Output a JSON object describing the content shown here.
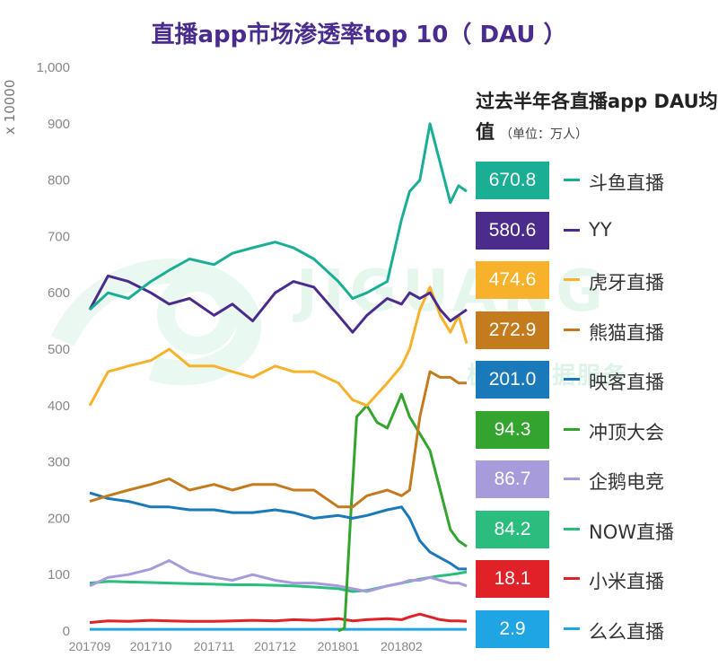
{
  "chart_data": {
    "type": "line",
    "title": "直播app市场渗透率top 10（ DAU ）",
    "y_unit_label": "x 10000",
    "ylim": [
      0,
      1000
    ],
    "y_ticks": [
      "0",
      "100",
      "200",
      "300",
      "400",
      "500",
      "600",
      "700",
      "800",
      "900",
      "1,000"
    ],
    "x_ticks": [
      "201709",
      "201710",
      "201711",
      "201712",
      "201801",
      "201802"
    ],
    "x_range": [
      "2017-09-01",
      "2018-03-05"
    ],
    "grid": false,
    "legend_title": "过去半年各直播app DAU均值",
    "legend_unit": "（单位：万人）",
    "series": [
      {
        "name": "斗鱼直播",
        "avg": "670.8",
        "color": "#1aae95",
        "x": [
          "2017-09-01",
          "2017-09-10",
          "2017-09-20",
          "2017-10-01",
          "2017-10-10",
          "2017-10-20",
          "2017-11-01",
          "2017-11-10",
          "2017-11-20",
          "2017-12-01",
          "2017-12-10",
          "2017-12-20",
          "2018-01-01",
          "2018-01-08",
          "2018-01-15",
          "2018-01-25",
          "2018-02-01",
          "2018-02-05",
          "2018-02-10",
          "2018-02-15",
          "2018-02-20",
          "2018-02-25",
          "2018-03-01",
          "2018-03-05"
        ],
        "values": [
          570,
          600,
          590,
          620,
          640,
          660,
          650,
          670,
          680,
          690,
          680,
          660,
          620,
          590,
          600,
          620,
          730,
          780,
          800,
          900,
          830,
          760,
          790,
          780
        ]
      },
      {
        "name": "YY",
        "avg": "580.6",
        "color": "#4b2c8c",
        "x": [
          "2017-09-01",
          "2017-09-10",
          "2017-09-20",
          "2017-10-01",
          "2017-10-10",
          "2017-10-20",
          "2017-11-01",
          "2017-11-10",
          "2017-11-20",
          "2017-12-01",
          "2017-12-10",
          "2017-12-20",
          "2018-01-01",
          "2018-01-08",
          "2018-01-15",
          "2018-01-25",
          "2018-02-01",
          "2018-02-05",
          "2018-02-10",
          "2018-02-15",
          "2018-02-20",
          "2018-02-25",
          "2018-03-01",
          "2018-03-05"
        ],
        "values": [
          570,
          630,
          620,
          600,
          580,
          590,
          560,
          580,
          550,
          600,
          620,
          610,
          560,
          530,
          560,
          590,
          580,
          600,
          590,
          600,
          570,
          550,
          560,
          570
        ]
      },
      {
        "name": "虎牙直播",
        "avg": "474.6",
        "color": "#f7b12b",
        "x": [
          "2017-09-01",
          "2017-09-10",
          "2017-09-20",
          "2017-10-01",
          "2017-10-10",
          "2017-10-20",
          "2017-11-01",
          "2017-11-10",
          "2017-11-20",
          "2017-12-01",
          "2017-12-10",
          "2017-12-20",
          "2018-01-01",
          "2018-01-08",
          "2018-01-15",
          "2018-01-25",
          "2018-02-01",
          "2018-02-05",
          "2018-02-10",
          "2018-02-15",
          "2018-02-20",
          "2018-02-25",
          "2018-03-01",
          "2018-03-05"
        ],
        "values": [
          400,
          460,
          470,
          480,
          500,
          470,
          470,
          460,
          450,
          470,
          460,
          460,
          440,
          410,
          400,
          440,
          470,
          500,
          570,
          610,
          560,
          530,
          560,
          510
        ]
      },
      {
        "name": "熊猫直播",
        "avg": "272.9",
        "color": "#c37b1e",
        "x": [
          "2017-09-01",
          "2017-09-10",
          "2017-09-20",
          "2017-10-01",
          "2017-10-10",
          "2017-10-20",
          "2017-11-01",
          "2017-11-10",
          "2017-11-20",
          "2017-12-01",
          "2017-12-10",
          "2017-12-20",
          "2018-01-01",
          "2018-01-08",
          "2018-01-15",
          "2018-01-25",
          "2018-02-01",
          "2018-02-05",
          "2018-02-10",
          "2018-02-15",
          "2018-02-20",
          "2018-02-25",
          "2018-03-01",
          "2018-03-05"
        ],
        "values": [
          230,
          240,
          250,
          260,
          270,
          250,
          260,
          250,
          260,
          260,
          250,
          250,
          220,
          220,
          240,
          250,
          240,
          250,
          380,
          460,
          450,
          450,
          440,
          440
        ]
      },
      {
        "name": "映客直播",
        "avg": "201.0",
        "color": "#1a79b9",
        "x": [
          "2017-09-01",
          "2017-09-10",
          "2017-09-20",
          "2017-10-01",
          "2017-10-10",
          "2017-10-20",
          "2017-11-01",
          "2017-11-10",
          "2017-11-20",
          "2017-12-01",
          "2017-12-10",
          "2017-12-20",
          "2018-01-01",
          "2018-01-08",
          "2018-01-15",
          "2018-01-25",
          "2018-02-01",
          "2018-02-05",
          "2018-02-10",
          "2018-02-15",
          "2018-02-20",
          "2018-02-25",
          "2018-03-01",
          "2018-03-05"
        ],
        "values": [
          245,
          235,
          230,
          220,
          220,
          215,
          215,
          210,
          210,
          215,
          210,
          200,
          205,
          200,
          205,
          215,
          220,
          200,
          160,
          140,
          130,
          120,
          110,
          110
        ]
      },
      {
        "name": "冲顶大会",
        "avg": "94.3",
        "color": "#33a42d",
        "x": [
          "2018-01-01",
          "2018-01-04",
          "2018-01-07",
          "2018-01-10",
          "2018-01-15",
          "2018-01-20",
          "2018-01-25",
          "2018-02-01",
          "2018-02-05",
          "2018-02-10",
          "2018-02-15",
          "2018-02-20",
          "2018-02-25",
          "2018-03-01",
          "2018-03-05"
        ],
        "values": [
          0,
          5,
          200,
          380,
          400,
          370,
          360,
          420,
          380,
          350,
          320,
          250,
          180,
          160,
          150
        ]
      },
      {
        "name": "企鹅电竞",
        "avg": "86.7",
        "color": "#a89bdc",
        "x": [
          "2017-09-01",
          "2017-09-10",
          "2017-09-20",
          "2017-10-01",
          "2017-10-10",
          "2017-10-20",
          "2017-11-01",
          "2017-11-10",
          "2017-11-20",
          "2017-12-01",
          "2017-12-10",
          "2017-12-20",
          "2018-01-01",
          "2018-01-08",
          "2018-01-15",
          "2018-01-25",
          "2018-02-01",
          "2018-02-05",
          "2018-02-10",
          "2018-02-15",
          "2018-02-20",
          "2018-02-25",
          "2018-03-01",
          "2018-03-05"
        ],
        "values": [
          80,
          95,
          100,
          110,
          125,
          105,
          95,
          90,
          100,
          90,
          85,
          85,
          80,
          75,
          70,
          80,
          85,
          90,
          90,
          95,
          90,
          85,
          85,
          80
        ]
      },
      {
        "name": "NOW直播",
        "avg": "84.2",
        "color": "#2bbd7e",
        "x": [
          "2017-09-01",
          "2017-09-10",
          "2017-09-20",
          "2017-10-01",
          "2017-10-10",
          "2017-10-20",
          "2017-11-01",
          "2017-11-10",
          "2017-11-20",
          "2017-12-01",
          "2017-12-10",
          "2017-12-20",
          "2018-01-01",
          "2018-01-08",
          "2018-01-15",
          "2018-01-25",
          "2018-02-01",
          "2018-02-05",
          "2018-02-10",
          "2018-02-15",
          "2018-02-20",
          "2018-02-25",
          "2018-03-01",
          "2018-03-05"
        ],
        "values": [
          85,
          88,
          87,
          86,
          85,
          84,
          83,
          82,
          82,
          81,
          80,
          78,
          75,
          70,
          72,
          80,
          85,
          88,
          92,
          95,
          98,
          100,
          102,
          105
        ]
      },
      {
        "name": "小米直播",
        "avg": "18.1",
        "color": "#e02128",
        "x": [
          "2017-09-01",
          "2017-09-10",
          "2017-09-20",
          "2017-10-01",
          "2017-10-10",
          "2017-10-20",
          "2017-11-01",
          "2017-11-10",
          "2017-11-20",
          "2017-12-01",
          "2017-12-10",
          "2017-12-20",
          "2018-01-01",
          "2018-01-08",
          "2018-01-15",
          "2018-01-25",
          "2018-02-01",
          "2018-02-05",
          "2018-02-10",
          "2018-02-15",
          "2018-02-20",
          "2018-02-25",
          "2018-03-01",
          "2018-03-05"
        ],
        "values": [
          15,
          18,
          17,
          19,
          18,
          17,
          17,
          18,
          19,
          18,
          20,
          19,
          22,
          18,
          20,
          22,
          20,
          25,
          30,
          25,
          20,
          18,
          18,
          17
        ]
      },
      {
        "name": "么么直播",
        "avg": "2.9",
        "color": "#1fa5e3",
        "x": [
          "2017-09-01",
          "2017-10-01",
          "2017-11-01",
          "2017-12-01",
          "2018-01-01",
          "2018-02-01",
          "2018-03-05"
        ],
        "values": [
          3,
          3,
          3,
          3,
          3,
          3,
          3
        ]
      }
    ]
  }
}
